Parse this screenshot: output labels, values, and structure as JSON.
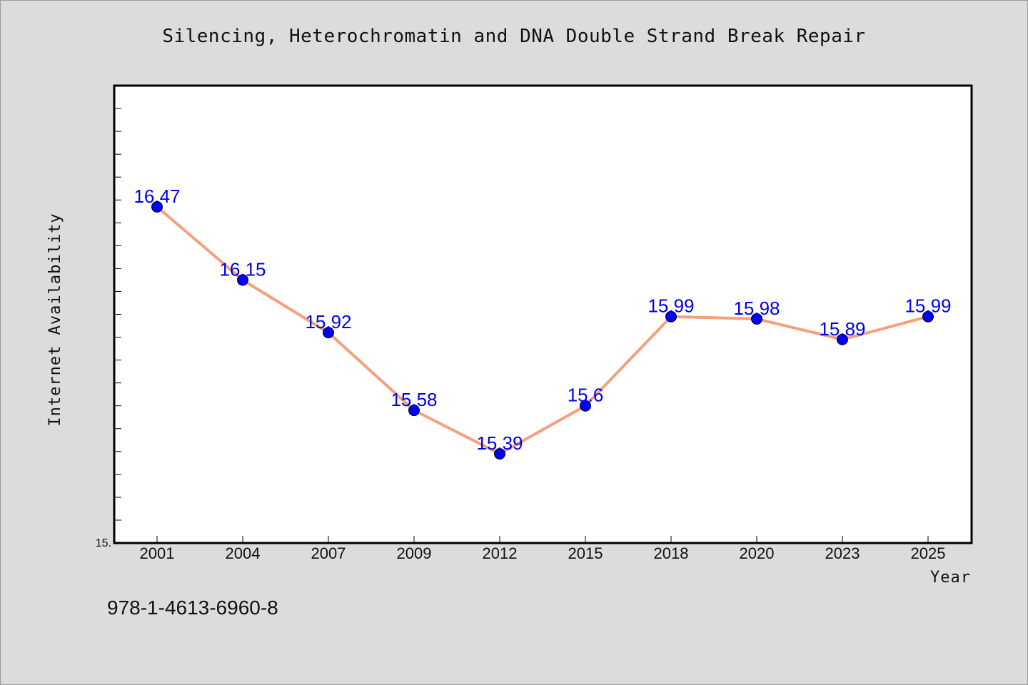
{
  "chart_data": {
    "type": "line",
    "title": "Silencing, Heterochromatin and DNA Double Strand Break Repair",
    "xlabel": "Year",
    "ylabel": "Internet Availability",
    "categories": [
      "2001",
      "2004",
      "2007",
      "2009",
      "2012",
      "2015",
      "2018",
      "2020",
      "2023",
      "2025"
    ],
    "series": [
      {
        "values": [
          16.47,
          16.15,
          15.92,
          15.58,
          15.39,
          15.6,
          15.99,
          15.98,
          15.89,
          15.99
        ],
        "data_labels": [
          "16.47",
          "16.15",
          "15.92",
          "15.58",
          "15.39",
          "15.6",
          "15.99",
          "15.98",
          "15.89",
          "15.99"
        ]
      }
    ],
    "ylim": [
      15.0,
      17.0
    ],
    "y_tick_labels": [
      "15."
    ],
    "grid": false,
    "colors": {
      "line": "#f4a07c",
      "marker": "#0000ff",
      "label": "#0000ee",
      "plot_bg": "#ffffff",
      "page_bg": "#dcdcdc"
    }
  },
  "footnote": "978-1-4613-6960-8"
}
